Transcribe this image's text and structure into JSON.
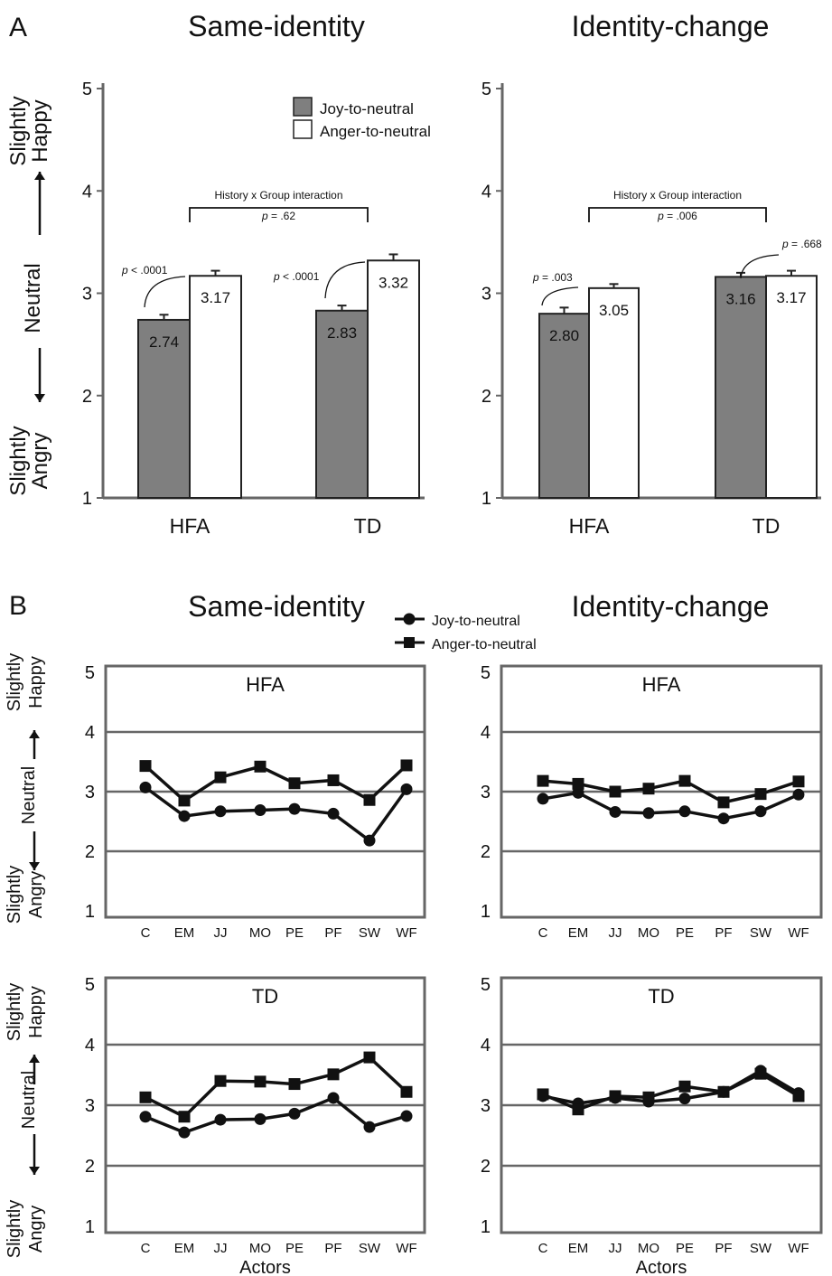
{
  "panels": {
    "a": "A",
    "b": "B"
  },
  "legend_a": {
    "joy": "Joy-to-neutral",
    "anger": "Anger-to-neutral"
  },
  "legend_b": {
    "joy": "Joy-to-neutral",
    "anger": "Anger-to-neutral"
  },
  "y_axis_labels": {
    "top": "Slightly Happy",
    "middle": "Neutral",
    "bottom": "Slightly Angry"
  },
  "colors": {
    "joy_bar": "#7f7f7f",
    "anger_bar": "#ffffff",
    "axis": "#666666",
    "line": "#111111"
  },
  "chart_data": [
    {
      "type": "bar",
      "title": "Same-identity",
      "categories": [
        "HFA",
        "TD"
      ],
      "series": [
        {
          "name": "Joy-to-neutral",
          "values": [
            2.74,
            2.83
          ],
          "value_labels": [
            "2.74",
            "2.83"
          ]
        },
        {
          "name": "Anger-to-neutral",
          "values": [
            3.17,
            3.32
          ],
          "value_labels": [
            "3.17",
            "3.32"
          ]
        }
      ],
      "errors": [
        [
          0.05,
          0.05
        ],
        [
          0.05,
          0.06
        ]
      ],
      "ylim": [
        1,
        5
      ],
      "yticks": [
        "1",
        "2",
        "3",
        "4",
        "5"
      ],
      "annotations": {
        "interaction_label": "History x Group interaction",
        "interaction_p": "p = .62",
        "group_p": [
          "p < .0001",
          "p < .0001"
        ]
      }
    },
    {
      "type": "bar",
      "title": "Identity-change",
      "categories": [
        "HFA",
        "TD"
      ],
      "series": [
        {
          "name": "Joy-to-neutral",
          "values": [
            2.8,
            3.16
          ],
          "value_labels": [
            "2.80",
            "3.16"
          ]
        },
        {
          "name": "Anger-to-neutral",
          "values": [
            3.05,
            3.17
          ],
          "value_labels": [
            "3.05",
            "3.17"
          ]
        }
      ],
      "errors": [
        [
          0.06,
          0.04
        ],
        [
          0.04,
          0.05
        ]
      ],
      "ylim": [
        1,
        5
      ],
      "yticks": [
        "1",
        "2",
        "3",
        "4",
        "5"
      ],
      "annotations": {
        "interaction_label": "History x Group interaction",
        "interaction_p": "p = .006",
        "group_p": [
          "p = .003",
          "p = .668"
        ]
      }
    },
    {
      "type": "line",
      "title": "Same-identity",
      "subtitle": "HFA",
      "categories": [
        "C",
        "EM",
        "JJ",
        "MO",
        "PE",
        "PF",
        "SW",
        "WF"
      ],
      "series": [
        {
          "name": "Joy-to-neutral",
          "values": [
            3.07,
            2.59,
            2.67,
            2.69,
            2.71,
            2.63,
            2.18,
            3.04
          ]
        },
        {
          "name": "Anger-to-neutral",
          "values": [
            3.43,
            2.85,
            3.24,
            3.42,
            3.14,
            3.19,
            2.86,
            3.44
          ]
        }
      ],
      "ylim": [
        1,
        5
      ],
      "yticks": [
        "1",
        "2",
        "3",
        "4",
        "5"
      ],
      "xlabel": ""
    },
    {
      "type": "line",
      "title": "Identity-change",
      "subtitle": "HFA",
      "categories": [
        "C",
        "EM",
        "JJ",
        "MO",
        "PE",
        "PF",
        "SW",
        "WF"
      ],
      "series": [
        {
          "name": "Joy-to-neutral",
          "values": [
            2.88,
            2.98,
            2.66,
            2.64,
            2.67,
            2.55,
            2.67,
            2.95
          ]
        },
        {
          "name": "Anger-to-neutral",
          "values": [
            3.18,
            3.13,
            3.0,
            3.05,
            3.18,
            2.82,
            2.96,
            3.17
          ]
        }
      ],
      "ylim": [
        1,
        5
      ],
      "yticks": [
        "1",
        "2",
        "3",
        "4",
        "5"
      ],
      "xlabel": ""
    },
    {
      "type": "line",
      "subtitle": "TD",
      "categories": [
        "C",
        "EM",
        "JJ",
        "MO",
        "PE",
        "PF",
        "SW",
        "WF"
      ],
      "series": [
        {
          "name": "Joy-to-neutral",
          "values": [
            2.81,
            2.55,
            2.76,
            2.77,
            2.86,
            3.12,
            2.64,
            2.82
          ]
        },
        {
          "name": "Anger-to-neutral",
          "values": [
            3.13,
            2.81,
            3.4,
            3.39,
            3.35,
            3.51,
            3.79,
            3.22
          ]
        }
      ],
      "ylim": [
        1,
        5
      ],
      "yticks": [
        "1",
        "2",
        "3",
        "4",
        "5"
      ],
      "xlabel": "Actors"
    },
    {
      "type": "line",
      "subtitle": "TD",
      "categories": [
        "C",
        "EM",
        "JJ",
        "MO",
        "PE",
        "PF",
        "SW",
        "WF"
      ],
      "series": [
        {
          "name": "Joy-to-neutral",
          "values": [
            3.15,
            3.03,
            3.12,
            3.06,
            3.11,
            3.22,
            3.57,
            3.2
          ]
        },
        {
          "name": "Anger-to-neutral",
          "values": [
            3.18,
            2.93,
            3.15,
            3.13,
            3.31,
            3.22,
            3.52,
            3.15
          ]
        }
      ],
      "ylim": [
        1,
        5
      ],
      "yticks": [
        "1",
        "2",
        "3",
        "4",
        "5"
      ],
      "xlabel": "Actors"
    }
  ]
}
